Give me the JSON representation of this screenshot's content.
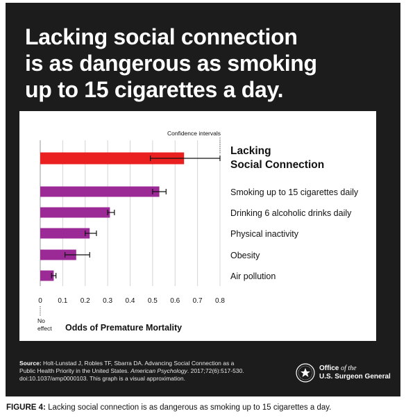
{
  "headline": [
    "Lacking social connection",
    "is as dangerous as smoking",
    "up to 15 cigarettes a day."
  ],
  "chart_data": {
    "type": "bar",
    "orientation": "horizontal",
    "categories": [
      [
        "Lacking",
        "Social Connection"
      ],
      [
        "Smoking up to 15 cigarettes daily"
      ],
      [
        "Drinking 6 alcoholic drinks daily"
      ],
      [
        "Physical inactivity"
      ],
      [
        "Obesity"
      ],
      [
        "Air pollution"
      ]
    ],
    "values": [
      0.64,
      0.53,
      0.31,
      0.22,
      0.16,
      0.06
    ],
    "ci": [
      [
        0.49,
        0.8
      ],
      [
        0.5,
        0.56
      ],
      [
        0.3,
        0.33
      ],
      [
        0.2,
        0.25
      ],
      [
        0.11,
        0.22
      ],
      [
        0.05,
        0.07
      ]
    ],
    "colors": [
      "#e9201f",
      "#9b2a96",
      "#9b2a96",
      "#9b2a96",
      "#9b2a96",
      "#9b2a96"
    ],
    "highlight_index": 0,
    "xlim": [
      0,
      0.8
    ],
    "xticks": [
      "0",
      "0.1",
      "0.2",
      "0.3",
      "0.4",
      "0.5",
      "0.6",
      "0.7",
      "0.8"
    ],
    "xlabel": "Odds of Premature Mortality",
    "zero_label": [
      "No",
      "effect"
    ],
    "ci_annotation": "Confidence intervals",
    "grid": "vertical"
  },
  "source": {
    "label": "Source:",
    "text1": "Holt-Lunstad J, Robles TF, Sbarra DA. Advancing Social Connection as a",
    "text2a": "Public Health Priority in the United States. ",
    "journal": "American Psychology",
    "text2b": ". 2017;72(6):517-530.",
    "text3": "doi:10.1037/amp0000103. This graph is a visual approximation."
  },
  "office": {
    "line1a": "Office ",
    "line1b": "of the",
    "line2": "U.S. Surgeon General"
  },
  "caption": {
    "label": "FIGURE 4:",
    "text": " Lacking social connection is as dangerous as smoking up to 15 cigarettes a day."
  }
}
